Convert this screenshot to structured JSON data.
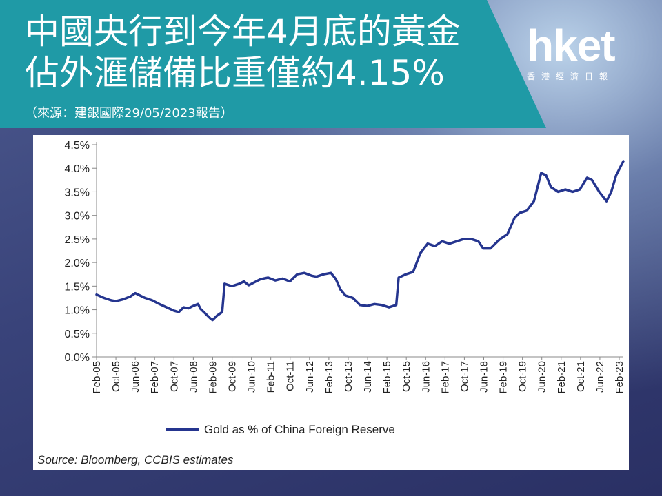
{
  "header": {
    "title_line1": "中國央行到今年4月底的黃金",
    "title_line2": "佔外滙儲備比重僅約4.15%",
    "source_cn": "（來源：建銀國際29/05/2023報告）",
    "banner_color": "#1f9aa6"
  },
  "logo": {
    "main": "hket",
    "sub": "香港經濟日報"
  },
  "chart_data": {
    "type": "line",
    "title": "",
    "xlabel": "",
    "ylabel": "",
    "ylim": [
      0,
      4.5
    ],
    "y_ticks": [
      "0.0%",
      "0.5%",
      "1.0%",
      "1.5%",
      "2.0%",
      "2.5%",
      "3.0%",
      "3.5%",
      "4.0%",
      "4.5%"
    ],
    "x_ticks": [
      "Feb-05",
      "Oct-05",
      "Jun-06",
      "Feb-07",
      "Oct-07",
      "Jun-08",
      "Feb-09",
      "Oct-09",
      "Jun-10",
      "Feb-11",
      "Oct-11",
      "Jun-12",
      "Feb-13",
      "Oct-13",
      "Jun-14",
      "Feb-15",
      "Oct-15",
      "Jun-16",
      "Feb-17",
      "Oct-17",
      "Jun-18",
      "Feb-19",
      "Oct-19",
      "Jun-20",
      "Feb-21",
      "Oct-21",
      "Jun-22",
      "Feb-23"
    ],
    "legend": "Gold as % of China Foreign Reserve",
    "legend_position": "bottom",
    "source_note": "Source: Bloomberg, CCBIS estimates",
    "color": "#25358f",
    "x_start": "2005-02",
    "x_end": "2023-04",
    "series": [
      {
        "name": "Gold as % of China Foreign Reserve",
        "points": [
          [
            "2005-02",
            1.32
          ],
          [
            "2005-05",
            1.25
          ],
          [
            "2005-08",
            1.2
          ],
          [
            "2005-10",
            1.18
          ],
          [
            "2006-01",
            1.22
          ],
          [
            "2006-04",
            1.28
          ],
          [
            "2006-06",
            1.35
          ],
          [
            "2006-08",
            1.3
          ],
          [
            "2006-10",
            1.25
          ],
          [
            "2007-01",
            1.2
          ],
          [
            "2007-04",
            1.12
          ],
          [
            "2007-07",
            1.05
          ],
          [
            "2007-10",
            0.98
          ],
          [
            "2007-12",
            0.95
          ],
          [
            "2008-02",
            1.05
          ],
          [
            "2008-04",
            1.03
          ],
          [
            "2008-06",
            1.08
          ],
          [
            "2008-08",
            1.12
          ],
          [
            "2008-09",
            1.02
          ],
          [
            "2008-11",
            0.92
          ],
          [
            "2009-01",
            0.82
          ],
          [
            "2009-02",
            0.78
          ],
          [
            "2009-04",
            0.88
          ],
          [
            "2009-06",
            0.95
          ],
          [
            "2009-07",
            1.55
          ],
          [
            "2009-10",
            1.5
          ],
          [
            "2010-01",
            1.55
          ],
          [
            "2010-03",
            1.6
          ],
          [
            "2010-05",
            1.52
          ],
          [
            "2010-08",
            1.6
          ],
          [
            "2010-10",
            1.65
          ],
          [
            "2011-01",
            1.68
          ],
          [
            "2011-04",
            1.62
          ],
          [
            "2011-07",
            1.66
          ],
          [
            "2011-10",
            1.6
          ],
          [
            "2012-01",
            1.75
          ],
          [
            "2012-04",
            1.78
          ],
          [
            "2012-07",
            1.72
          ],
          [
            "2012-09",
            1.7
          ],
          [
            "2012-12",
            1.75
          ],
          [
            "2013-03",
            1.78
          ],
          [
            "2013-05",
            1.65
          ],
          [
            "2013-07",
            1.42
          ],
          [
            "2013-09",
            1.3
          ],
          [
            "2013-12",
            1.25
          ],
          [
            "2014-03",
            1.1
          ],
          [
            "2014-06",
            1.08
          ],
          [
            "2014-09",
            1.12
          ],
          [
            "2014-12",
            1.1
          ],
          [
            "2015-03",
            1.05
          ],
          [
            "2015-06",
            1.1
          ],
          [
            "2015-07",
            1.68
          ],
          [
            "2015-10",
            1.75
          ],
          [
            "2016-01",
            1.8
          ],
          [
            "2016-04",
            2.2
          ],
          [
            "2016-07",
            2.4
          ],
          [
            "2016-10",
            2.35
          ],
          [
            "2017-01",
            2.45
          ],
          [
            "2017-04",
            2.4
          ],
          [
            "2017-07",
            2.45
          ],
          [
            "2017-10",
            2.5
          ],
          [
            "2018-01",
            2.5
          ],
          [
            "2018-04",
            2.45
          ],
          [
            "2018-06",
            2.3
          ],
          [
            "2018-09",
            2.3
          ],
          [
            "2019-01",
            2.5
          ],
          [
            "2019-04",
            2.6
          ],
          [
            "2019-07",
            2.95
          ],
          [
            "2019-09",
            3.05
          ],
          [
            "2019-12",
            3.1
          ],
          [
            "2020-03",
            3.3
          ],
          [
            "2020-06",
            3.9
          ],
          [
            "2020-08",
            3.85
          ],
          [
            "2020-10",
            3.6
          ],
          [
            "2021-01",
            3.5
          ],
          [
            "2021-04",
            3.55
          ],
          [
            "2021-07",
            3.5
          ],
          [
            "2021-10",
            3.55
          ],
          [
            "2022-01",
            3.8
          ],
          [
            "2022-03",
            3.75
          ],
          [
            "2022-06",
            3.5
          ],
          [
            "2022-09",
            3.3
          ],
          [
            "2022-11",
            3.5
          ],
          [
            "2023-01",
            3.85
          ],
          [
            "2023-03",
            4.05
          ],
          [
            "2023-04",
            4.15
          ]
        ]
      }
    ]
  }
}
